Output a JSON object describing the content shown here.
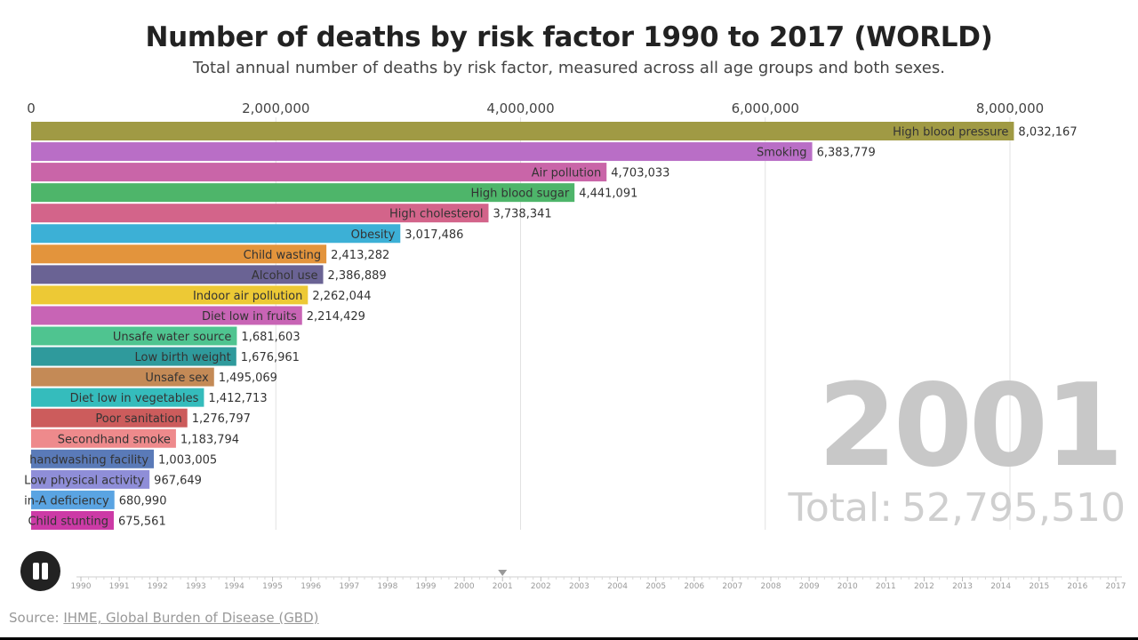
{
  "header": {
    "title": "Number of deaths by risk factor 1990 to 2017 (WORLD)",
    "subtitle": "Total annual number of deaths by risk factor, measured across all age groups and both sexes."
  },
  "overlay": {
    "year": "2001",
    "total_label": "Total:",
    "total_value": "52,795,510"
  },
  "controls": {
    "pause_label": "pause"
  },
  "timeline": {
    "years": [
      "1990",
      "1991",
      "1992",
      "1993",
      "1994",
      "1995",
      "1996",
      "1997",
      "1998",
      "1999",
      "2000",
      "2001",
      "2002",
      "2003",
      "2004",
      "2005",
      "2006",
      "2007",
      "2008",
      "2009",
      "2010",
      "2011",
      "2012",
      "2013",
      "2014",
      "2015",
      "2016",
      "2017"
    ],
    "current": "2001"
  },
  "source": {
    "prefix": "Source: ",
    "link_text": "IHME, Global Burden of Disease (GBD)"
  },
  "chart_data": {
    "type": "bar",
    "orientation": "horizontal",
    "title": "Number of deaths by risk factor 1990 to 2017 (WORLD)",
    "subtitle": "Total annual number of deaths by risk factor, measured across all age groups and both sexes.",
    "xlim": [
      0,
      8700000
    ],
    "x_ticks": [
      0,
      2000000,
      4000000,
      6000000,
      8000000
    ],
    "x_tick_labels": [
      "0",
      "2,000,000",
      "4,000,000",
      "6,000,000",
      "8,000,000"
    ],
    "x_axis_position": "top",
    "grid": true,
    "categories": [
      "High blood pressure",
      "Smoking",
      "Air pollution",
      "High blood sugar",
      "High cholesterol",
      "Obesity",
      "Child wasting",
      "Alcohol use",
      "Indoor air pollution",
      "Diet low in fruits",
      "Unsafe water source",
      "Low birth weight",
      "Unsafe sex",
      "Diet low in vegetables",
      "Poor sanitation",
      "Secondhand smoke",
      "handwashing facility",
      "Low physical activity",
      "in-A deficiency",
      "Child stunting"
    ],
    "values": [
      8032167,
      6383779,
      4703033,
      4441091,
      3738341,
      3017486,
      2413282,
      2386889,
      2262044,
      2214429,
      1681603,
      1676961,
      1495069,
      1412713,
      1276797,
      1183794,
      1003005,
      967649,
      680990,
      675561
    ],
    "value_labels": [
      "8,032,167",
      "6,383,779",
      "4,703,033",
      "4,441,091",
      "3,738,341",
      "3,017,486",
      "2,413,282",
      "2,386,889",
      "2,262,044",
      "2,214,429",
      "1,681,603",
      "1,676,961",
      "1,495,069",
      "1,412,713",
      "1,276,797",
      "1,183,794",
      "1,003,005",
      "967,649",
      "680,990",
      "675,561"
    ],
    "colors": [
      "#a09a44",
      "#b96ec6",
      "#c965a8",
      "#4eb56a",
      "#d3648a",
      "#3cb0d6",
      "#e3943c",
      "#6a6394",
      "#edc935",
      "#c864b5",
      "#4fc490",
      "#2f9a9c",
      "#c48a56",
      "#35bcbc",
      "#cc5c5c",
      "#ee8a8c",
      "#5a7ab8",
      "#8f8ed8",
      "#5aa4e2",
      "#cc3aa6"
    ]
  }
}
